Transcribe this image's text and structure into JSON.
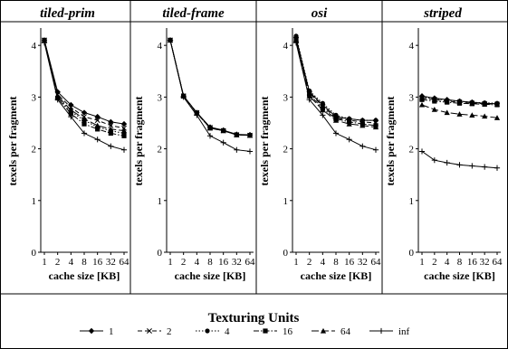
{
  "chart_data": [
    {
      "type": "line",
      "title": "tiled-prim",
      "xlabel": "cache size [KB]",
      "ylabel": "texels per fragment",
      "x": [
        1,
        2,
        4,
        8,
        16,
        32,
        64
      ],
      "ylim": [
        0,
        4.3
      ],
      "yticks": [
        0,
        1,
        2,
        3,
        4
      ],
      "xscale": "log2",
      "series": [
        {
          "name": "1",
          "marker": "diamond",
          "dash": "solid",
          "values": [
            4.1,
            3.1,
            2.85,
            2.7,
            2.62,
            2.52,
            2.48
          ]
        },
        {
          "name": "2",
          "marker": "x",
          "dash": "dashed",
          "values": [
            4.1,
            3.05,
            2.8,
            2.62,
            2.55,
            2.45,
            2.4
          ]
        },
        {
          "name": "4",
          "marker": "circle",
          "dash": "dotted",
          "values": [
            4.1,
            3.0,
            2.72,
            2.55,
            2.42,
            2.35,
            2.3
          ]
        },
        {
          "name": "16",
          "marker": "square",
          "dash": "dashdot",
          "values": [
            4.1,
            2.98,
            2.68,
            2.48,
            2.38,
            2.3,
            2.25
          ]
        },
        {
          "name": "64",
          "marker": "triangle",
          "dash": "longdash",
          "values": [
            4.1,
            3.02,
            2.75,
            2.58,
            2.45,
            2.38,
            2.35
          ]
        },
        {
          "name": "inf",
          "marker": "plus",
          "dash": "solid",
          "values": [
            4.05,
            2.95,
            2.62,
            2.3,
            2.18,
            2.05,
            1.98
          ]
        }
      ]
    },
    {
      "type": "line",
      "title": "tiled-frame",
      "xlabel": "cache size [KB]",
      "ylabel": "texels per fragment",
      "x": [
        1,
        2,
        4,
        8,
        16,
        32,
        64
      ],
      "ylim": [
        0,
        4.3
      ],
      "yticks": [
        0,
        1,
        2,
        3,
        4
      ],
      "xscale": "log2",
      "series": [
        {
          "name": "1",
          "marker": "diamond",
          "dash": "solid",
          "values": [
            4.1,
            3.02,
            2.7,
            2.42,
            2.36,
            2.28,
            2.27
          ]
        },
        {
          "name": "2",
          "marker": "x",
          "dash": "dashed",
          "values": [
            4.1,
            3.02,
            2.7,
            2.41,
            2.35,
            2.27,
            2.26
          ]
        },
        {
          "name": "4",
          "marker": "circle",
          "dash": "dotted",
          "values": [
            4.1,
            3.02,
            2.7,
            2.41,
            2.35,
            2.27,
            2.26
          ]
        },
        {
          "name": "16",
          "marker": "square",
          "dash": "dashdot",
          "values": [
            4.1,
            3.02,
            2.69,
            2.4,
            2.35,
            2.27,
            2.26
          ]
        },
        {
          "name": "64",
          "marker": "triangle",
          "dash": "longdash",
          "values": [
            4.1,
            3.02,
            2.69,
            2.4,
            2.35,
            2.27,
            2.26
          ]
        },
        {
          "name": "inf",
          "marker": "plus",
          "dash": "solid",
          "values": [
            4.1,
            3.0,
            2.65,
            2.25,
            2.12,
            1.98,
            1.95
          ]
        }
      ]
    },
    {
      "type": "line",
      "title": "osi",
      "xlabel": "cache size [KB]",
      "ylabel": "texels per fragment",
      "x": [
        1,
        2,
        4,
        8,
        16,
        32,
        64
      ],
      "ylim": [
        0,
        4.3
      ],
      "yticks": [
        0,
        1,
        2,
        3,
        4
      ],
      "xscale": "log2",
      "series": [
        {
          "name": "1",
          "marker": "diamond",
          "dash": "solid",
          "values": [
            4.15,
            3.1,
            2.85,
            2.62,
            2.58,
            2.55,
            2.55
          ]
        },
        {
          "name": "2",
          "marker": "x",
          "dash": "dashed",
          "values": [
            4.12,
            3.08,
            2.82,
            2.6,
            2.55,
            2.52,
            2.5
          ]
        },
        {
          "name": "4",
          "marker": "circle",
          "dash": "dotted",
          "values": [
            4.18,
            3.12,
            2.88,
            2.65,
            2.58,
            2.55,
            2.55
          ]
        },
        {
          "name": "16",
          "marker": "square",
          "dash": "dashdot",
          "values": [
            4.1,
            3.05,
            2.78,
            2.58,
            2.52,
            2.48,
            2.45
          ]
        },
        {
          "name": "64",
          "marker": "triangle",
          "dash": "longdash",
          "values": [
            4.1,
            3.02,
            2.75,
            2.55,
            2.48,
            2.45,
            2.42
          ]
        },
        {
          "name": "inf",
          "marker": "plus",
          "dash": "solid",
          "values": [
            4.05,
            2.95,
            2.65,
            2.3,
            2.18,
            2.05,
            1.98
          ]
        }
      ]
    },
    {
      "type": "line",
      "title": "striped",
      "xlabel": "cache size [KB]",
      "ylabel": "texels per fragment",
      "x": [
        1,
        2,
        4,
        8,
        16,
        32,
        64
      ],
      "ylim": [
        0,
        4.3
      ],
      "yticks": [
        0,
        1,
        2,
        3,
        4
      ],
      "xscale": "log2",
      "series": [
        {
          "name": "1",
          "marker": "diamond",
          "dash": "solid",
          "values": [
            3.02,
            2.98,
            2.95,
            2.92,
            2.9,
            2.88,
            2.87
          ]
        },
        {
          "name": "2",
          "marker": "x",
          "dash": "dashed",
          "values": [
            2.98,
            2.95,
            2.92,
            2.9,
            2.88,
            2.87,
            2.86
          ]
        },
        {
          "name": "4",
          "marker": "circle",
          "dash": "dotted",
          "values": [
            3.0,
            2.97,
            2.94,
            2.92,
            2.9,
            2.89,
            2.88
          ]
        },
        {
          "name": "16",
          "marker": "square",
          "dash": "dashdot",
          "values": [
            2.95,
            2.92,
            2.9,
            2.88,
            2.87,
            2.86,
            2.85
          ]
        },
        {
          "name": "64",
          "marker": "triangle",
          "dash": "longdash",
          "values": [
            2.85,
            2.76,
            2.7,
            2.67,
            2.65,
            2.63,
            2.6
          ]
        },
        {
          "name": "inf",
          "marker": "plus",
          "dash": "solid",
          "values": [
            1.95,
            1.78,
            1.73,
            1.69,
            1.67,
            1.65,
            1.63
          ]
        }
      ]
    }
  ],
  "legend": {
    "title": "Texturing Units",
    "placement": "bottom"
  },
  "colors": {
    "line": "#000000",
    "background": "#ffffff"
  }
}
